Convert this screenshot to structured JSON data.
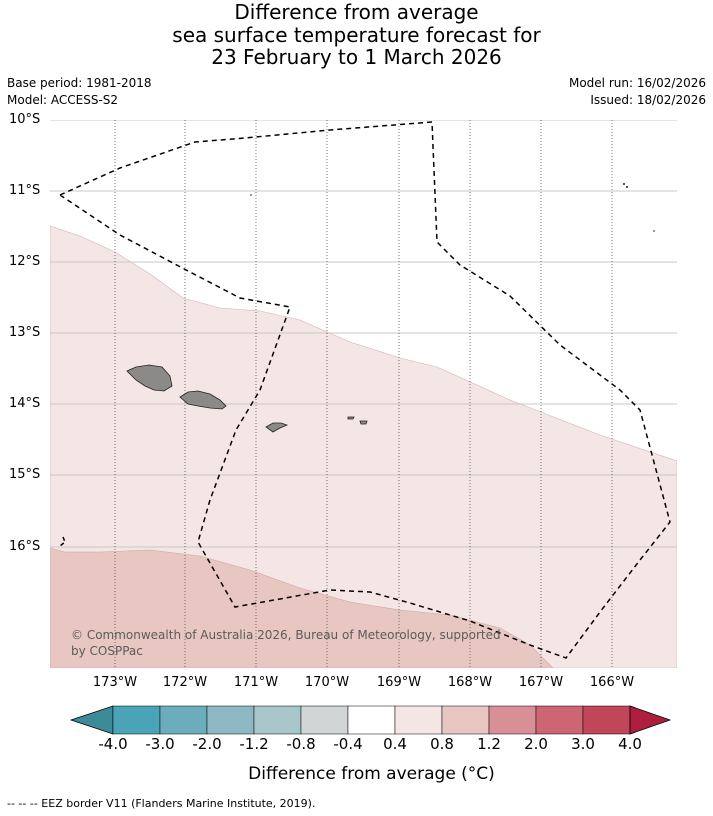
{
  "title": {
    "line1": "Difference from average",
    "line2": "sea surface temperature forecast for",
    "line3": "23 February to 1 March 2026"
  },
  "meta": {
    "base_period": "Base period: 1981-2018",
    "model": "Model: ACCESS-S2",
    "model_run": "Model run: 16/02/2026",
    "issued": "Issued: 18/02/2026"
  },
  "map": {
    "lat_labels": [
      "10°S",
      "11°S",
      "12°S",
      "13°S",
      "14°S",
      "15°S",
      "16°S"
    ],
    "lon_labels": [
      "173°W",
      "172°W",
      "171°W",
      "170°W",
      "169°W",
      "168°W",
      "167°W",
      "166°W"
    ],
    "copyright": "© Commonwealth of Australia 2026, Bureau of Meteorology, supported by COSPPac",
    "colors": {
      "land": "#8c8989",
      "band_0_4_to_0_8": "#f4e6e5",
      "band_0_8_to_1_2": "#e8c6c1",
      "grid": "#c8c8c8",
      "eez": "#000000"
    }
  },
  "colorbar": {
    "title": "Difference from average (°C)",
    "ticks": [
      "-4.0",
      "-3.0",
      "-2.0",
      "-1.2",
      "-0.8",
      "-0.4",
      "0.4",
      "0.8",
      "1.2",
      "2.0",
      "3.0",
      "4.0"
    ],
    "colors": [
      "#3e8a98",
      "#4aa3b7",
      "#6cadbd",
      "#8eb9c4",
      "#a9c6cb",
      "#d1d5d6",
      "#ffffff",
      "#f4e6e5",
      "#e8c6c1",
      "#d98f96",
      "#cc6672",
      "#c04659",
      "#b01e3e"
    ]
  },
  "footer": "-- -- -- EEZ border V11 (Flanders Marine Institute, 2019)."
}
